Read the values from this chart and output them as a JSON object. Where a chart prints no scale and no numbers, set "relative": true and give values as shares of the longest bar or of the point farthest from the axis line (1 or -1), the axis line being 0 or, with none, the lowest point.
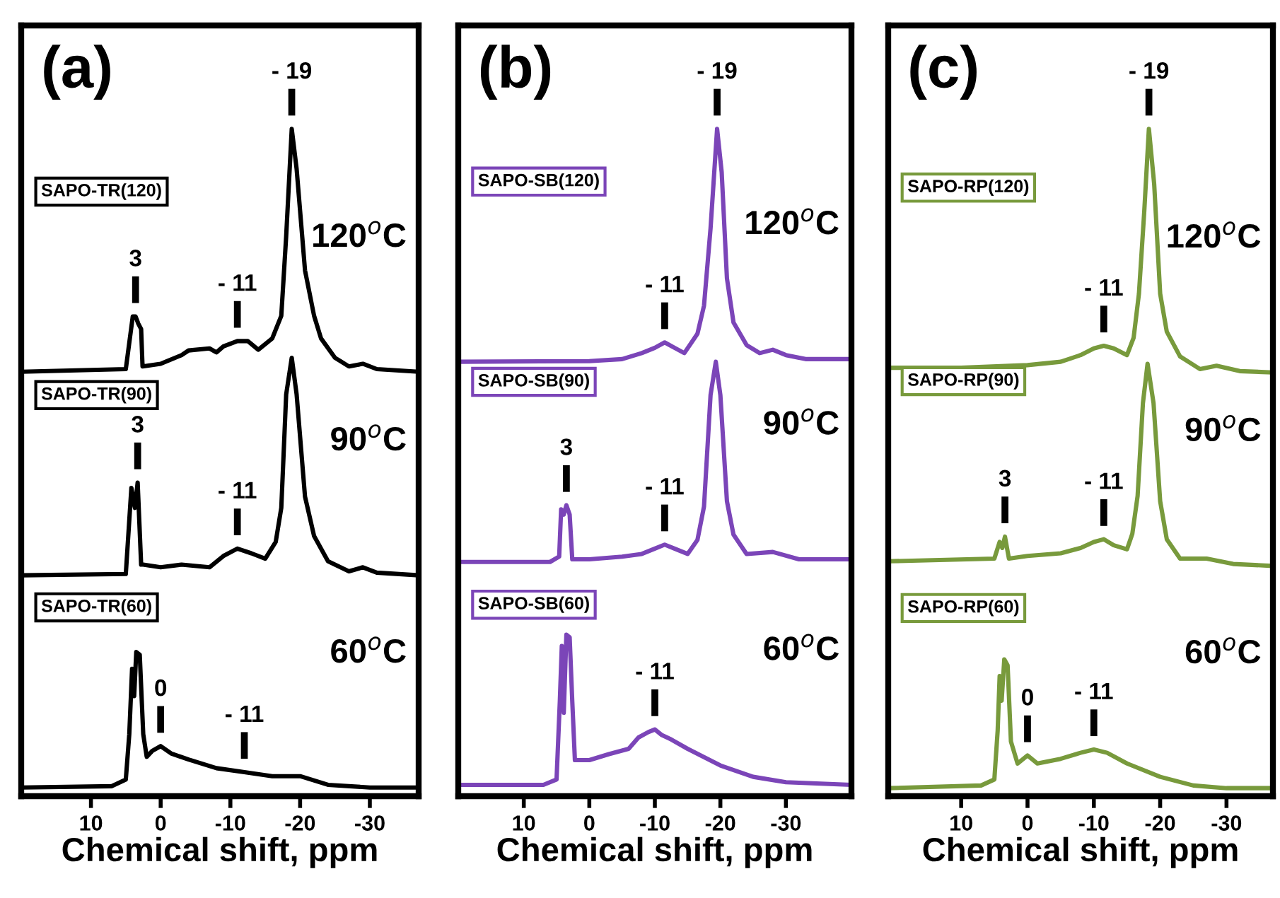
{
  "chart_data": [
    {
      "type": "line",
      "title": "(a)",
      "xlabel": "Chemical shift, ppm",
      "relative": true,
      "xlim": [
        20,
        -37
      ],
      "xticks": [
        10,
        0,
        -10,
        -20,
        -30
      ],
      "tick_labels": "x",
      "grid": false,
      "legend": false,
      "series": [
        {
          "name": "SAPO-TR(120)",
          "color": "#000000",
          "x": [
            20,
            5,
            4,
            3.6,
            3.2,
            2.8,
            2.6,
            0,
            -3,
            -4,
            -7,
            -8,
            -9,
            -11,
            -12.5,
            -14,
            -16,
            -17.3,
            -18.0,
            -18.8,
            -19.5,
            -20.7,
            -22,
            -23,
            -25,
            -27,
            -29,
            -31,
            -37
          ],
          "values": [
            0.636,
            0.64,
            0.719,
            0.719,
            0.708,
            0.7,
            0.644,
            0.648,
            0.661,
            0.668,
            0.671,
            0.665,
            0.674,
            0.682,
            0.682,
            0.669,
            0.686,
            0.72,
            0.839,
            1,
            0.94,
            0.788,
            0.72,
            0.686,
            0.657,
            0.644,
            0.648,
            0.64,
            0.636
          ]
        },
        {
          "name": "SAPO-TR(90)",
          "color": "#000000",
          "x": [
            20,
            5,
            4.2,
            3.7,
            3.3,
            2.8,
            2.5,
            0,
            -3,
            -7,
            -9,
            -11,
            -13,
            -15,
            -16.5,
            -17.3,
            -18.0,
            -18.8,
            -19.5,
            -20.7,
            -22,
            -24,
            -27,
            -29,
            -31,
            -37
          ],
          "values": [
            0.331,
            0.333,
            0.462,
            0.432,
            0.47,
            0.347,
            0.347,
            0.343,
            0.347,
            0.343,
            0.36,
            0.371,
            0.364,
            0.356,
            0.381,
            0.432,
            0.602,
            0.657,
            0.602,
            0.449,
            0.39,
            0.352,
            0.337,
            0.343,
            0.335,
            0.331
          ]
        },
        {
          "name": "SAPO-TR(60)",
          "color": "#000000",
          "x": [
            20,
            7,
            5,
            4.5,
            4.1,
            3.8,
            3.5,
            3.0,
            2.5,
            2,
            1.2,
            0,
            -1.5,
            -4,
            -8,
            -12,
            -16,
            -20,
            -24,
            -30,
            -37
          ],
          "values": [
            0.013,
            0.015,
            0.025,
            0.093,
            0.191,
            0.15,
            0.216,
            0.212,
            0.093,
            0.059,
            0.068,
            0.075,
            0.064,
            0.055,
            0.042,
            0.036,
            0.03,
            0.03,
            0.017,
            0.013,
            0.013
          ]
        }
      ],
      "annotations": [
        {
          "text": "- 19",
          "x": -18.8,
          "y": 1
        },
        {
          "text": "3",
          "x": 3.6,
          "y": 0.719
        },
        {
          "text": "- 11",
          "x": -11,
          "y": 0.682
        },
        {
          "text": "3",
          "x": 3.3,
          "y": 0.47
        },
        {
          "text": "- 11",
          "x": -11,
          "y": 0.371
        },
        {
          "text": "0",
          "x": 0,
          "y": 0.075
        },
        {
          "text": "- 11",
          "x": -12,
          "y": 0.036
        },
        "120$^{o}$C",
        "90$^{o}$C",
        "60$^{o}$C"
      ]
    },
    {
      "type": "line",
      "title": "(b)",
      "xlabel": "Chemical shift, ppm",
      "relative": true,
      "xlim": [
        20,
        -40
      ],
      "xticks": [
        10,
        0,
        -10,
        -20,
        -30
      ],
      "tick_labels": "x",
      "grid": false,
      "legend": false,
      "series": [
        {
          "name": "SAPO-SB(120)",
          "color": "#7b45b8",
          "x": [
            20,
            0,
            -5,
            -8,
            -10,
            -11.5,
            -13,
            -14.5,
            -16.5,
            -17.5,
            -18.5,
            -19.5,
            -20.2,
            -21,
            -22,
            -24,
            -26,
            -28,
            -30,
            -33,
            -40
          ],
          "values": [
            0.651,
            0.652,
            0.655,
            0.664,
            0.672,
            0.68,
            0.672,
            0.664,
            0.693,
            0.735,
            0.851,
            1,
            0.935,
            0.776,
            0.71,
            0.676,
            0.664,
            0.669,
            0.661,
            0.655,
            0.655
          ]
        },
        {
          "name": "SAPO-SB(90)",
          "color": "#7b45b8",
          "x": [
            20,
            6,
            4.6,
            4.3,
            3.9,
            3.5,
            3.0,
            2.6,
            0,
            -5,
            -8,
            -10,
            -11.5,
            -13,
            -15,
            -16.5,
            -17.5,
            -18.5,
            -19.3,
            -20,
            -21,
            -22,
            -24,
            -28,
            -32,
            -40
          ],
          "values": [
            0.351,
            0.351,
            0.359,
            0.43,
            0.422,
            0.436,
            0.422,
            0.355,
            0.355,
            0.359,
            0.363,
            0.371,
            0.377,
            0.371,
            0.363,
            0.384,
            0.434,
            0.601,
            0.651,
            0.601,
            0.442,
            0.392,
            0.363,
            0.366,
            0.355,
            0.355
          ]
        },
        {
          "name": "SAPO-SB(60)",
          "color": "#7b45b8",
          "x": [
            20,
            7,
            5,
            4.5,
            4.2,
            3.9,
            3.5,
            3.0,
            2.6,
            2.2,
            0,
            -3,
            -6,
            -7.5,
            -9,
            -10,
            -11,
            -12.5,
            -15,
            -20,
            -25,
            -30,
            -40
          ],
          "values": [
            0.017,
            0.017,
            0.025,
            0.142,
            0.225,
            0.125,
            0.242,
            0.238,
            0.142,
            0.054,
            0.054,
            0.063,
            0.071,
            0.088,
            0.096,
            0.1,
            0.092,
            0.085,
            0.071,
            0.046,
            0.029,
            0.021,
            0.017
          ]
        }
      ],
      "annotations": [
        {
          "text": "- 19",
          "x": -19.5,
          "y": 1
        },
        {
          "text": "- 11",
          "x": -11.5,
          "y": 0.68
        },
        {
          "text": "3",
          "x": 3.5,
          "y": 0.436
        },
        {
          "text": "- 11",
          "x": -11.5,
          "y": 0.377
        },
        {
          "text": "- 11",
          "x": -10,
          "y": 0.1
        },
        "120$^{o}$C",
        "90$^{o}$C",
        "60$^{o}$C"
      ]
    },
    {
      "type": "line",
      "title": "(c)",
      "xlabel": "Chemical shift, ppm",
      "relative": true,
      "xlim": [
        21,
        -37
      ],
      "xticks": [
        10,
        0,
        -10,
        -20,
        -30
      ],
      "tick_labels": "x",
      "grid": false,
      "legend": false,
      "series": [
        {
          "name": "SAPO-RP(120)",
          "color": "#789a3c",
          "x": [
            21,
            10,
            0,
            -5,
            -8,
            -10,
            -11.5,
            -13,
            -15,
            -16,
            -16.8,
            -17.6,
            -18.3,
            -19.1,
            -20,
            -21,
            -23,
            -26,
            -28.5,
            -32,
            -37
          ],
          "values": [
            0.642,
            0.642,
            0.646,
            0.651,
            0.661,
            0.671,
            0.675,
            0.671,
            0.661,
            0.687,
            0.753,
            0.876,
            1,
            0.917,
            0.753,
            0.696,
            0.659,
            0.64,
            0.645,
            0.637,
            0.635
          ]
        },
        {
          "name": "SAPO-RP(90)",
          "color": "#789a3c",
          "x": [
            21,
            5,
            4.2,
            3.8,
            3.4,
            2.8,
            0,
            -5,
            -8,
            -10,
            -11.5,
            -13,
            -15,
            -15.8,
            -16.6,
            -17.4,
            -18.1,
            -19,
            -20,
            -21,
            -23,
            -27,
            -31,
            -37
          ],
          "values": [
            0.352,
            0.356,
            0.381,
            0.372,
            0.389,
            0.356,
            0.36,
            0.364,
            0.372,
            0.381,
            0.385,
            0.376,
            0.37,
            0.393,
            0.45,
            0.589,
            0.648,
            0.589,
            0.442,
            0.385,
            0.356,
            0.356,
            0.348,
            0.345
          ]
        },
        {
          "name": "SAPO-RP(60)",
          "color": "#789a3c",
          "x": [
            21,
            7,
            5,
            4.5,
            4.2,
            3.9,
            3.5,
            3.0,
            2.5,
            1.5,
            0,
            -1.5,
            -5,
            -8,
            -10,
            -12,
            -15,
            -20,
            -25,
            -30,
            -37
          ],
          "values": [
            0.012,
            0.016,
            0.025,
            0.098,
            0.18,
            0.143,
            0.205,
            0.196,
            0.082,
            0.049,
            0.061,
            0.049,
            0.056,
            0.065,
            0.07,
            0.065,
            0.049,
            0.029,
            0.016,
            0.012,
            0.012
          ]
        }
      ],
      "annotations": [
        {
          "text": "- 19",
          "x": -18.3,
          "y": 1
        },
        {
          "text": "- 11",
          "x": -11.5,
          "y": 0.675
        },
        {
          "text": "3",
          "x": 3.4,
          "y": 0.389
        },
        {
          "text": "- 11",
          "x": -11.5,
          "y": 0.385
        },
        {
          "text": "0",
          "x": 0,
          "y": 0.061
        },
        {
          "text": "- 11",
          "x": -10,
          "y": 0.07
        },
        "120$^{o}$C",
        "90$^{o}$C",
        "60$^{o}$C"
      ]
    }
  ]
}
